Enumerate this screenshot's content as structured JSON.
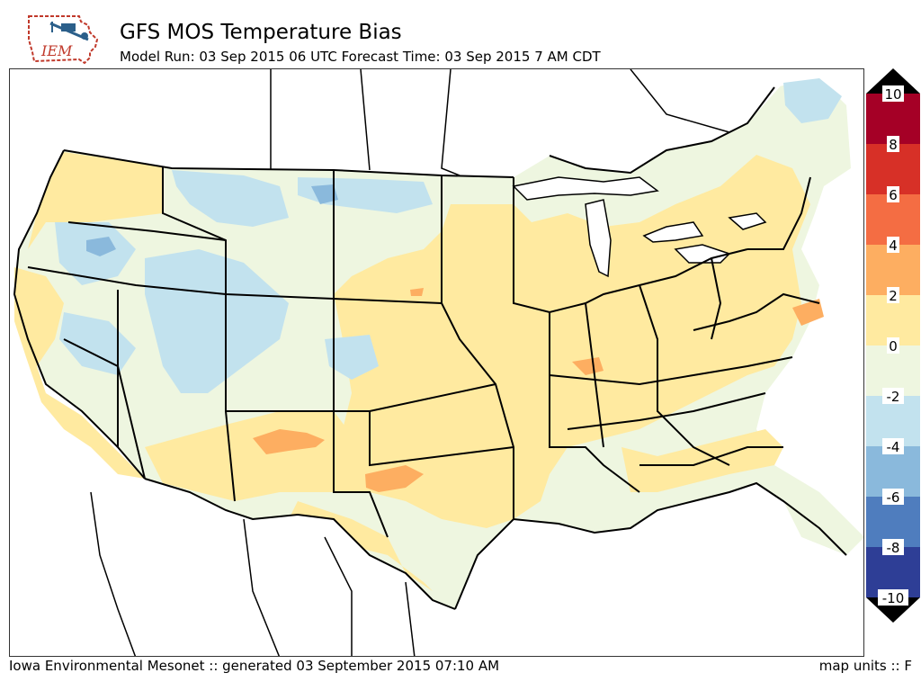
{
  "header": {
    "logo_text": "IEM",
    "title": "GFS MOS Temperature Bias",
    "subtitle": "Model Run: 03 Sep 2015 06 UTC Forecast Time: 03 Sep 2015 7 AM CDT"
  },
  "legend": {
    "ticks": [
      "10",
      "8",
      "6",
      "4",
      "2",
      "0",
      "-2",
      "-4",
      "-6",
      "-8",
      "-10"
    ],
    "colors": [
      "#a50026",
      "#d73027",
      "#f46d43",
      "#fdae61",
      "#fee090",
      "#ffffbf",
      "#e0f3f8",
      "#abd9e9",
      "#74add1",
      "#4575b4",
      "#313695"
    ],
    "band_colors": [
      "#a50026",
      "#d73027",
      "#f46d43",
      "#fdae61",
      "#ffeaa0",
      "#eef6e0",
      "#c2e2ee",
      "#8ab9dc",
      "#4f7dbe",
      "#2e3e96"
    ],
    "triangle_top_color": "#000000",
    "triangle_bottom_color": "#000000"
  },
  "footer": {
    "left": "Iowa Environmental Mesonet :: generated 03 September 2015 07:10 AM",
    "right": "map units :: F"
  }
}
